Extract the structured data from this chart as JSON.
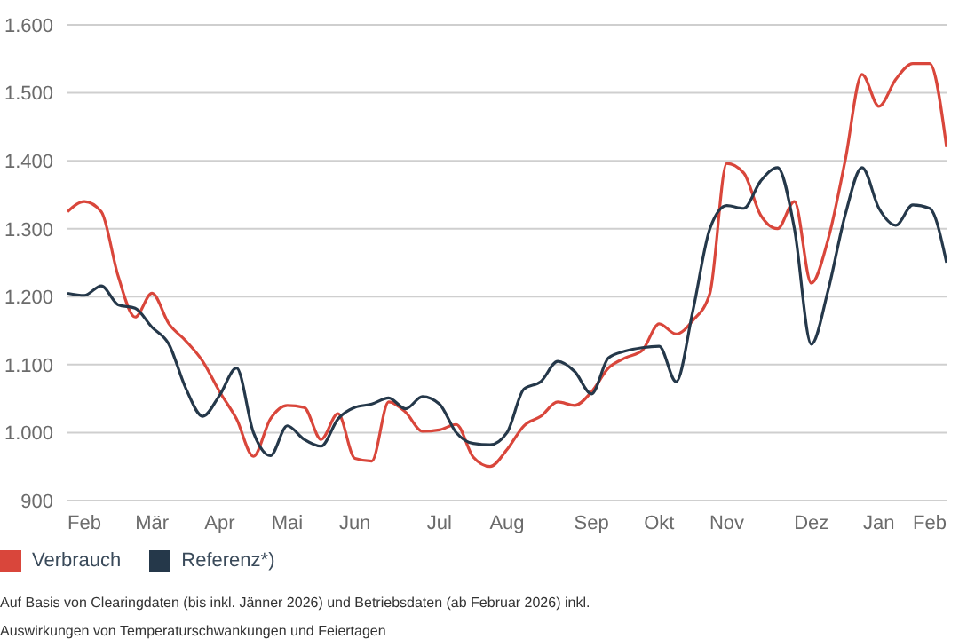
{
  "chart_data": {
    "type": "line",
    "categories": [
      null,
      "Feb",
      null,
      null,
      null,
      "Mär",
      null,
      null,
      null,
      "Apr",
      null,
      null,
      null,
      "Mai",
      null,
      null,
      null,
      "Jun",
      null,
      null,
      null,
      null,
      "Jul",
      null,
      null,
      null,
      "Aug",
      null,
      null,
      null,
      null,
      "Sep",
      null,
      null,
      null,
      "Okt",
      null,
      null,
      null,
      "Nov",
      null,
      null,
      null,
      null,
      "Dez",
      null,
      null,
      null,
      "Jan",
      null,
      null,
      "Feb",
      null
    ],
    "ylim": [
      900,
      1600
    ],
    "yticks": [
      {
        "value": 900,
        "label": "900"
      },
      {
        "value": 1000,
        "label": "1.000"
      },
      {
        "value": 1100,
        "label": "1.100"
      },
      {
        "value": 1200,
        "label": "1.200"
      },
      {
        "value": 1300,
        "label": "1.300"
      },
      {
        "value": 1400,
        "label": "1.400"
      },
      {
        "value": 1500,
        "label": "1.500"
      },
      {
        "value": 1600,
        "label": "1.600"
      }
    ],
    "grid": "y",
    "legend": "bottom left",
    "marker": "none",
    "line_style": "solid",
    "series": [
      {
        "name": "Verbrauch",
        "color": "#d9463b",
        "values": [
          1325,
          1340,
          1325,
          1230,
          1170,
          1205,
          1160,
          1135,
          1105,
          1060,
          1020,
          965,
          1020,
          1040,
          1037,
          990,
          1028,
          962,
          958,
          1045,
          1030,
          1002,
          1004,
          1012,
          964,
          950,
          975,
          1010,
          1024,
          1045,
          1040,
          1060,
          1095,
          1110,
          1121,
          1160,
          1145,
          1165,
          1205,
          1396,
          1382,
          1320,
          1300,
          1340,
          1220,
          1285,
          1400,
          1527,
          1480,
          1520,
          1543,
          1543,
          1420
        ]
      },
      {
        "name": "Referenz*)",
        "color": "#25384a",
        "values": [
          1205,
          1202,
          1216,
          1188,
          1183,
          1155,
          1130,
          1065,
          1024,
          1055,
          1095,
          1000,
          966,
          1010,
          990,
          980,
          1020,
          1037,
          1042,
          1051,
          1035,
          1053,
          1042,
          1000,
          984,
          982,
          1000,
          1064,
          1075,
          1105,
          1090,
          1057,
          1110,
          1120,
          1125,
          1127,
          1075,
          1180,
          1300,
          1334,
          1330,
          1370,
          1390,
          1300,
          1130,
          1210,
          1320,
          1390,
          1330,
          1305,
          1335,
          1330,
          1250
        ]
      }
    ],
    "annotations": [
      "Auf Basis von Clearingdaten (bis inkl. Jänner 2026) und Betriebsdaten (ab Februar  2026) inkl.",
      "Auswirkungen von Temperaturschwankungen und Feiertagen"
    ]
  }
}
